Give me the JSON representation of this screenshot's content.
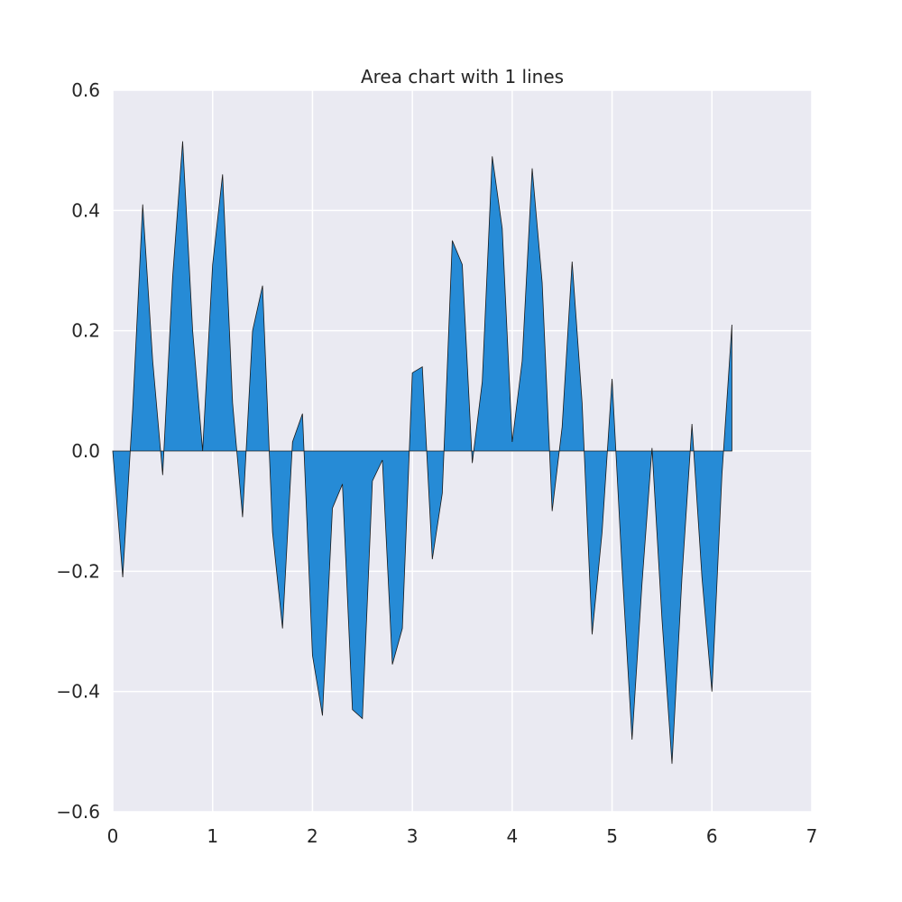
{
  "chart_data": {
    "type": "area",
    "title": "Area chart with 1 lines",
    "xlabel": "",
    "ylabel": "",
    "xlim": [
      0,
      7
    ],
    "ylim": [
      -0.6,
      0.6
    ],
    "x_ticks": [
      0,
      1,
      2,
      3,
      4,
      5,
      6,
      7
    ],
    "x_tick_labels": [
      "0",
      "1",
      "2",
      "3",
      "4",
      "5",
      "6",
      "7"
    ],
    "y_ticks": [
      -0.6,
      -0.4,
      -0.2,
      0.0,
      0.2,
      0.4,
      0.6
    ],
    "y_tick_labels": [
      "−0.6",
      "−0.4",
      "−0.2",
      "0.0",
      "0.2",
      "0.4",
      "0.6"
    ],
    "grid": true,
    "legend": "none",
    "colors": {
      "fill": "#268bd6",
      "edge": "#1a1a1a",
      "background": "#eaeaf2",
      "grid": "#ffffff"
    },
    "series": [
      {
        "x": [
          0.0,
          0.1,
          0.2,
          0.3,
          0.4,
          0.5,
          0.6,
          0.7,
          0.8,
          0.9,
          1.0,
          1.1,
          1.2,
          1.3,
          1.4,
          1.5,
          1.6,
          1.7,
          1.8,
          1.9,
          2.0,
          2.1,
          2.2,
          2.3,
          2.4,
          2.5,
          2.6,
          2.7,
          2.8,
          2.9,
          3.0,
          3.1,
          3.2,
          3.3,
          3.4,
          3.5,
          3.6,
          3.7,
          3.8,
          3.9,
          4.0,
          4.1,
          4.2,
          4.3,
          4.4,
          4.5,
          4.6,
          4.7,
          4.8,
          4.9,
          5.0,
          5.1,
          5.2,
          5.3,
          5.4,
          5.5,
          5.6,
          5.7,
          5.8,
          5.9,
          6.0,
          6.1,
          6.2
        ],
        "values": [
          0.0,
          -0.21,
          0.07,
          0.41,
          0.15,
          -0.04,
          0.29,
          0.515,
          0.2,
          0.0,
          0.31,
          0.46,
          0.08,
          -0.11,
          0.2,
          0.275,
          -0.135,
          -0.295,
          0.015,
          0.062,
          -0.34,
          -0.44,
          -0.095,
          -0.055,
          -0.43,
          -0.445,
          -0.05,
          -0.015,
          -0.355,
          -0.295,
          0.13,
          0.14,
          -0.18,
          -0.07,
          0.35,
          0.31,
          -0.02,
          0.115,
          0.49,
          0.37,
          0.015,
          0.15,
          0.47,
          0.28,
          -0.1,
          0.04,
          0.315,
          0.08,
          -0.305,
          -0.135,
          0.12,
          -0.195,
          -0.48,
          -0.22,
          0.005,
          -0.28,
          -0.52,
          -0.21,
          0.045,
          -0.21,
          -0.4,
          -0.04,
          0.21
        ]
      }
    ]
  }
}
